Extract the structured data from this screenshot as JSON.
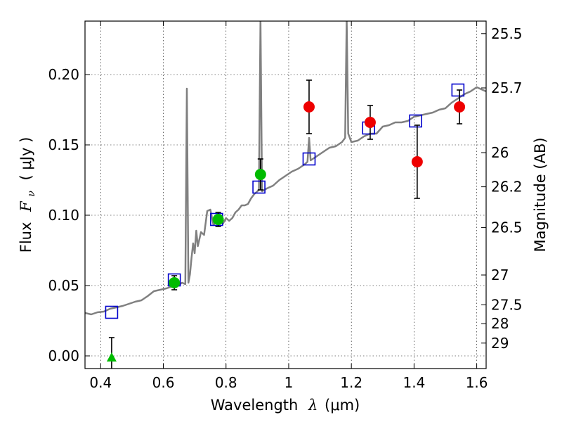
{
  "chart_data": {
    "type": "scatter",
    "xlabel_prefix": "Wavelength",
    "xlabel_symbol": "λ",
    "xlabel_unit": "(μm)",
    "ylabel_prefix": "Flux",
    "ylabel_symbol": "F",
    "ylabel_subscript": "ν",
    "ylabel_unit": "( μJy )",
    "y2label": "Magnitude (AB)",
    "xlim": [
      0.35,
      1.63
    ],
    "ylim": [
      -0.009,
      0.238
    ],
    "grid": true,
    "x_ticks": [
      0.4,
      0.6,
      0.8,
      1.0,
      1.2,
      1.4,
      1.6
    ],
    "x_tick_labels": [
      "0.4",
      "0.6",
      "0.8",
      "1",
      "1.2",
      "1.4",
      "1.6"
    ],
    "y_ticks": [
      0.0,
      0.05,
      0.1,
      0.15,
      0.2
    ],
    "y_tick_labels": [
      "0.00",
      "0.05",
      "0.10",
      "0.15",
      "0.20"
    ],
    "y2_ticks": [
      {
        "label": "25.5",
        "flux": 0.2291
      },
      {
        "label": "25.7",
        "flux": 0.1905
      },
      {
        "label": "26",
        "flux": 0.1445
      },
      {
        "label": "26.2",
        "flux": 0.1202
      },
      {
        "label": "26.5",
        "flux": 0.0912
      },
      {
        "label": "27",
        "flux": 0.0575
      },
      {
        "label": "27.5",
        "flux": 0.0363
      },
      {
        "label": "28",
        "flux": 0.0229
      },
      {
        "label": "29",
        "flux": 0.0091
      }
    ],
    "series": [
      {
        "kind": "line",
        "color": "#808080",
        "points": [
          [
            0.35,
            0.0305
          ],
          [
            0.37,
            0.0295
          ],
          [
            0.39,
            0.031
          ],
          [
            0.41,
            0.0315
          ],
          [
            0.43,
            0.0335
          ],
          [
            0.45,
            0.0345
          ],
          [
            0.47,
            0.0355
          ],
          [
            0.49,
            0.037
          ],
          [
            0.51,
            0.0385
          ],
          [
            0.53,
            0.0395
          ],
          [
            0.55,
            0.0425
          ],
          [
            0.57,
            0.046
          ],
          [
            0.59,
            0.047
          ],
          [
            0.61,
            0.048
          ],
          [
            0.63,
            0.0495
          ],
          [
            0.645,
            0.05
          ],
          [
            0.66,
            0.052
          ],
          [
            0.67,
            0.051
          ],
          [
            0.675,
            0.19
          ],
          [
            0.68,
            0.052
          ],
          [
            0.685,
            0.058
          ],
          [
            0.69,
            0.07
          ],
          [
            0.695,
            0.08
          ],
          [
            0.7,
            0.073
          ],
          [
            0.705,
            0.089
          ],
          [
            0.71,
            0.078
          ],
          [
            0.72,
            0.088
          ],
          [
            0.73,
            0.086
          ],
          [
            0.74,
            0.103
          ],
          [
            0.75,
            0.104
          ],
          [
            0.76,
            0.093
          ],
          [
            0.77,
            0.096
          ],
          [
            0.78,
            0.095
          ],
          [
            0.79,
            0.094
          ],
          [
            0.8,
            0.098
          ],
          [
            0.81,
            0.096
          ],
          [
            0.82,
            0.098
          ],
          [
            0.83,
            0.102
          ],
          [
            0.84,
            0.104
          ],
          [
            0.85,
            0.107
          ],
          [
            0.86,
            0.107
          ],
          [
            0.87,
            0.108
          ],
          [
            0.88,
            0.112
          ],
          [
            0.89,
            0.115
          ],
          [
            0.9,
            0.117
          ],
          [
            0.905,
            0.118
          ],
          [
            0.91,
            0.24
          ],
          [
            0.915,
            0.117
          ],
          [
            0.93,
            0.119
          ],
          [
            0.95,
            0.121
          ],
          [
            0.97,
            0.125
          ],
          [
            0.99,
            0.128
          ],
          [
            1.01,
            0.131
          ],
          [
            1.03,
            0.133
          ],
          [
            1.05,
            0.136
          ],
          [
            1.06,
            0.138
          ],
          [
            1.065,
            0.155
          ],
          [
            1.07,
            0.139
          ],
          [
            1.09,
            0.142
          ],
          [
            1.11,
            0.145
          ],
          [
            1.13,
            0.148
          ],
          [
            1.15,
            0.149
          ],
          [
            1.17,
            0.152
          ],
          [
            1.18,
            0.155
          ],
          [
            1.185,
            0.24
          ],
          [
            1.19,
            0.158
          ],
          [
            1.2,
            0.152
          ],
          [
            1.22,
            0.153
          ],
          [
            1.24,
            0.156
          ],
          [
            1.26,
            0.158
          ],
          [
            1.28,
            0.158
          ],
          [
            1.3,
            0.163
          ],
          [
            1.32,
            0.164
          ],
          [
            1.34,
            0.166
          ],
          [
            1.36,
            0.166
          ],
          [
            1.38,
            0.167
          ],
          [
            1.4,
            0.17
          ],
          [
            1.42,
            0.171
          ],
          [
            1.44,
            0.172
          ],
          [
            1.46,
            0.173
          ],
          [
            1.48,
            0.175
          ],
          [
            1.5,
            0.176
          ],
          [
            1.52,
            0.18
          ],
          [
            1.54,
            0.183
          ],
          [
            1.56,
            0.186
          ],
          [
            1.58,
            0.188
          ],
          [
            1.6,
            0.191
          ],
          [
            1.63,
            0.188
          ]
        ]
      },
      {
        "kind": "open-square",
        "color": "#0000cc",
        "points": [
          [
            0.435,
            0.031
          ],
          [
            0.635,
            0.054
          ],
          [
            0.77,
            0.097
          ],
          [
            0.905,
            0.12
          ],
          [
            1.065,
            0.14
          ],
          [
            1.255,
            0.162
          ],
          [
            1.405,
            0.167
          ],
          [
            1.54,
            0.189
          ]
        ]
      },
      {
        "kind": "filled-circle",
        "color": "#00bb00",
        "points": [
          [
            0.635,
            0.052,
            0.005
          ],
          [
            0.775,
            0.097,
            0.005
          ],
          [
            0.91,
            0.129,
            0.011
          ]
        ]
      },
      {
        "kind": "filled-circle",
        "color": "#ee0000",
        "points": [
          [
            1.065,
            0.177,
            0.019
          ],
          [
            1.26,
            0.166,
            0.012
          ],
          [
            1.41,
            0.138,
            0.026
          ],
          [
            1.545,
            0.177,
            0.012
          ]
        ]
      },
      {
        "kind": "triangle",
        "color": "#00bb00",
        "points": [
          [
            0.435,
            -0.001,
            0.014
          ]
        ]
      }
    ]
  }
}
